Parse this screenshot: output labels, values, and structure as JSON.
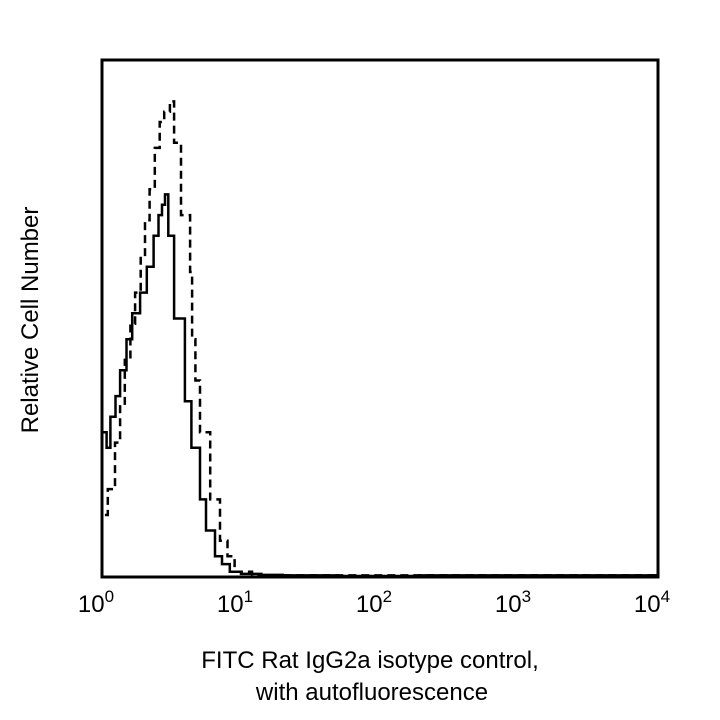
{
  "chart_data": {
    "type": "line",
    "title": "",
    "xlabel_lines": [
      "FITC Rat IgG2a isotype control,",
      "with autofluorescence"
    ],
    "ylabel": "Relative Cell Number",
    "xscale": "log",
    "xlim": [
      1,
      10000
    ],
    "ylim": [
      0,
      100
    ],
    "x_ticks": [
      {
        "value": 1,
        "base": "10",
        "exp": "0"
      },
      {
        "value": 10,
        "base": "10",
        "exp": "1"
      },
      {
        "value": 100,
        "base": "10",
        "exp": "2"
      },
      {
        "value": 1000,
        "base": "10",
        "exp": "3"
      },
      {
        "value": 10000,
        "base": "10",
        "exp": "4"
      }
    ],
    "grid": false,
    "series": [
      {
        "name": "isotype control",
        "style": "solid",
        "color": "#000000",
        "x": [
          1.0,
          1.08,
          1.15,
          1.25,
          1.35,
          1.5,
          1.65,
          1.88,
          2.1,
          2.35,
          2.55,
          2.7,
          2.84,
          3.0,
          3.3,
          3.95,
          4.4,
          5.07,
          5.6,
          6.5,
          7.3,
          8.3,
          10,
          14,
          20,
          50,
          190,
          10000
        ],
        "y": [
          28,
          25,
          31,
          35,
          40,
          46,
          51,
          55,
          60,
          66,
          70,
          72,
          74,
          66,
          50,
          34,
          25,
          15,
          9,
          4,
          2.5,
          1,
          0.6,
          0.4,
          0.3,
          0.2,
          0.3,
          0
        ]
      },
      {
        "name": "autofluorescence",
        "style": "dashed",
        "color": "#000000",
        "x": [
          1.05,
          1.1,
          1.24,
          1.35,
          1.46,
          1.6,
          1.73,
          1.9,
          2.04,
          2.2,
          2.4,
          2.6,
          2.8,
          3.08,
          3.3,
          3.7,
          4.3,
          4.45,
          4.7,
          5.07,
          6.0,
          7.06,
          8.0,
          9.0,
          12,
          10000
        ],
        "y": [
          12,
          17,
          26,
          33,
          42,
          49,
          55,
          62,
          69,
          75,
          83,
          88,
          90,
          92,
          84,
          70,
          59,
          46,
          38,
          28,
          15,
          7,
          4,
          1,
          0.3,
          0
        ]
      }
    ]
  }
}
